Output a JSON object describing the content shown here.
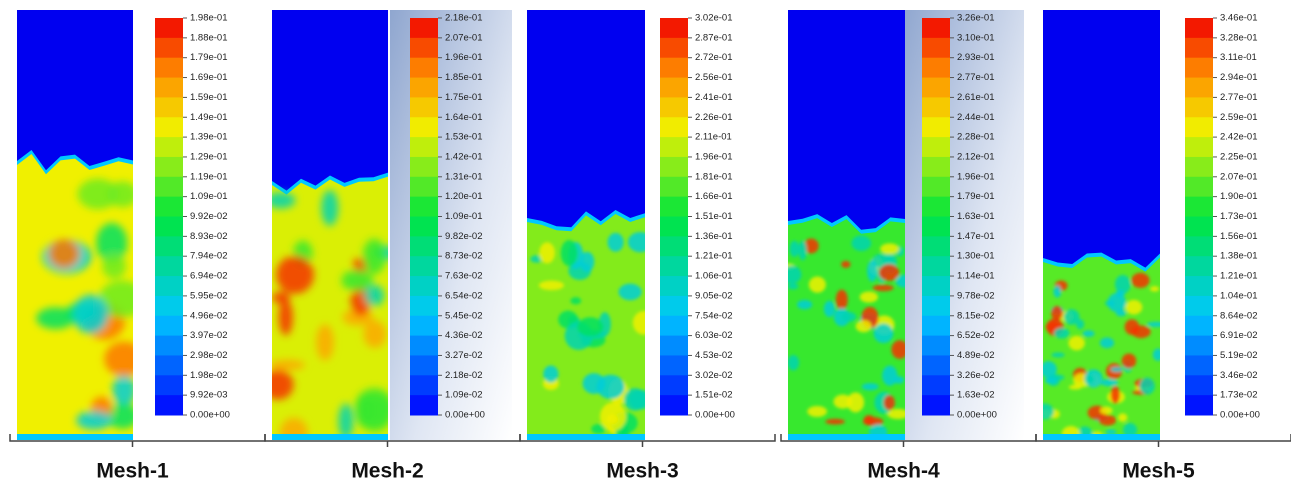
{
  "panels": [
    {
      "label": "Mesh-1",
      "colorbar_labels": [
        "1.98e-01",
        "1.88e-01",
        "1.79e-01",
        "1.69e-01",
        "1.59e-01",
        "1.49e-01",
        "1.39e-01",
        "1.29e-01",
        "1.19e-01",
        "1.09e-01",
        "9.92e-02",
        "8.93e-02",
        "7.94e-02",
        "6.94e-02",
        "5.95e-02",
        "4.96e-02",
        "3.97e-02",
        "2.98e-02",
        "1.98e-02",
        "9.92e-03",
        "0.00e+00"
      ]
    },
    {
      "label": "Mesh-2",
      "colorbar_labels": [
        "2.18e-01",
        "2.07e-01",
        "1.96e-01",
        "1.85e-01",
        "1.75e-01",
        "1.64e-01",
        "1.53e-01",
        "1.42e-01",
        "1.31e-01",
        "1.20e-01",
        "1.09e-01",
        "9.82e-02",
        "8.73e-02",
        "7.63e-02",
        "6.54e-02",
        "5.45e-02",
        "4.36e-02",
        "3.27e-02",
        "2.18e-02",
        "1.09e-02",
        "0.00e+00"
      ]
    },
    {
      "label": "Mesh-3",
      "colorbar_labels": [
        "3.02e-01",
        "2.87e-01",
        "2.72e-01",
        "2.56e-01",
        "2.41e-01",
        "2.26e-01",
        "2.11e-01",
        "1.96e-01",
        "1.81e-01",
        "1.66e-01",
        "1.51e-01",
        "1.36e-01",
        "1.21e-01",
        "1.06e-01",
        "9.05e-02",
        "7.54e-02",
        "6.03e-02",
        "4.53e-02",
        "3.02e-02",
        "1.51e-02",
        "0.00e+00"
      ]
    },
    {
      "label": "Mesh-4",
      "colorbar_labels": [
        "3.26e-01",
        "3.10e-01",
        "2.93e-01",
        "2.77e-01",
        "2.61e-01",
        "2.44e-01",
        "2.28e-01",
        "2.12e-01",
        "1.96e-01",
        "1.79e-01",
        "1.63e-01",
        "1.47e-01",
        "1.30e-01",
        "1.14e-01",
        "9.78e-02",
        "8.15e-02",
        "6.52e-02",
        "4.89e-02",
        "3.26e-02",
        "1.63e-02",
        "0.00e+00"
      ]
    },
    {
      "label": "Mesh-5",
      "colorbar_labels": [
        "3.46e-01",
        "3.28e-01",
        "3.11e-01",
        "2.94e-01",
        "2.77e-01",
        "2.59e-01",
        "2.42e-01",
        "2.25e-01",
        "2.07e-01",
        "1.90e-01",
        "1.73e-01",
        "1.56e-01",
        "1.38e-01",
        "1.21e-01",
        "1.04e-01",
        "8.64e-02",
        "6.91e-02",
        "5.19e-02",
        "3.46e-02",
        "1.73e-02",
        "0.00e+00"
      ]
    }
  ]
}
